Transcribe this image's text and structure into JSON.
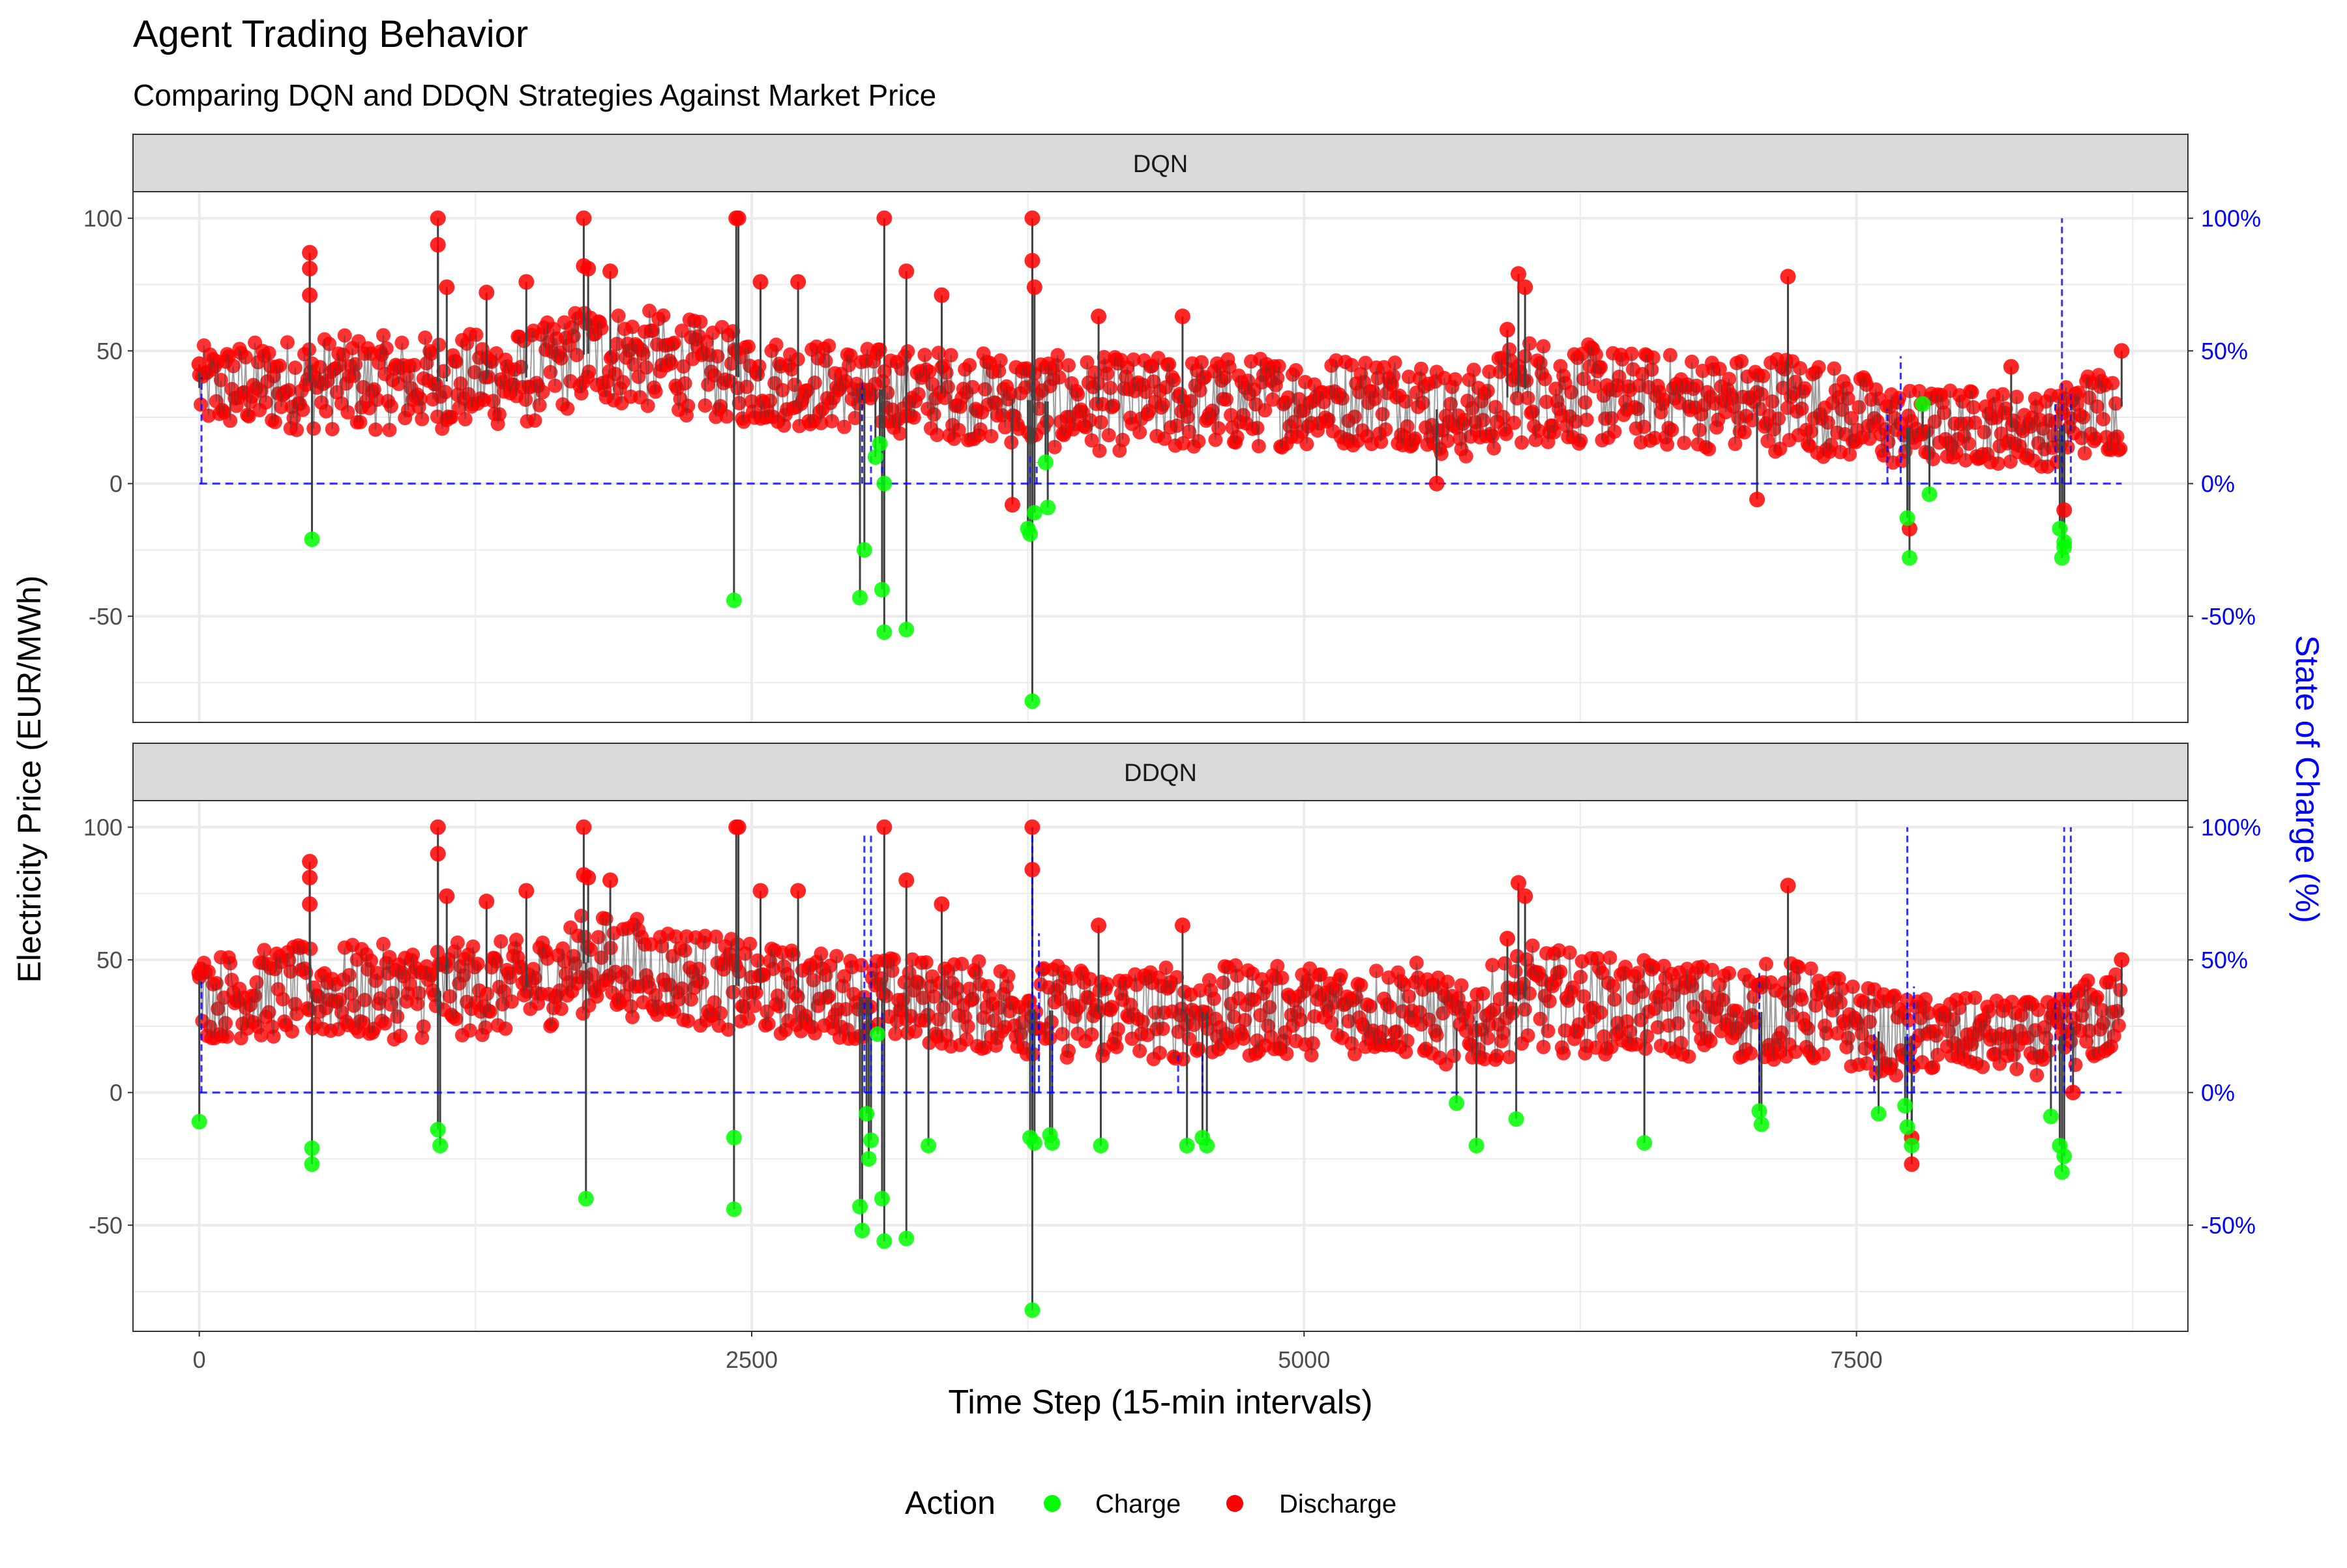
{
  "title": "Agent Trading Behavior",
  "subtitle": "Comparing DQN and DDQN Strategies Against Market Price",
  "colors": {
    "charge": "#00ff00",
    "discharge": "#ff0000",
    "price_line": "#404040",
    "soc_line": "#0000ff",
    "strip_fill": "#d9d9d9",
    "grid": "#ebebeb"
  },
  "legend": {
    "title": "Action",
    "position": "bottom",
    "items": [
      {
        "label": "Charge",
        "color": "#00ff00"
      },
      {
        "label": "Discharge",
        "color": "#ff0000"
      }
    ]
  },
  "chart_data": {
    "type": "scatter",
    "facets": [
      "DQN",
      "DDQN"
    ],
    "xlabel": "Time Step (15-min intervals)",
    "ylabel": "Electricity Price (EUR/MWh)",
    "y2label": "State of Charge (%)",
    "xlim": [
      -300,
      9000
    ],
    "ylim": [
      -90,
      100
    ],
    "xticks": [
      0,
      2500,
      5000,
      7500
    ],
    "xtick_labels": [
      "0",
      "2500",
      "5000",
      "7500"
    ],
    "yticks": [
      -50,
      0,
      50,
      100
    ],
    "ytick_labels": [
      "-50",
      "0",
      "50",
      "100"
    ],
    "y2ticks": [
      "-50%",
      "0%",
      "50%",
      "100%"
    ],
    "grid": true,
    "price_band": [
      {
        "x": 0,
        "low": 20,
        "high": 52
      },
      {
        "x": 500,
        "low": 20,
        "high": 56
      },
      {
        "x": 1000,
        "low": 20,
        "high": 56
      },
      {
        "x": 1500,
        "low": 22,
        "high": 58
      },
      {
        "x": 1750,
        "low": 30,
        "high": 68
      },
      {
        "x": 2000,
        "low": 28,
        "high": 66
      },
      {
        "x": 2250,
        "low": 25,
        "high": 62
      },
      {
        "x": 2500,
        "low": 22,
        "high": 56
      },
      {
        "x": 3000,
        "low": 20,
        "high": 52
      },
      {
        "x": 3500,
        "low": 16,
        "high": 50
      },
      {
        "x": 4000,
        "low": 12,
        "high": 48
      },
      {
        "x": 4500,
        "low": 12,
        "high": 48
      },
      {
        "x": 5000,
        "low": 14,
        "high": 48
      },
      {
        "x": 5500,
        "low": 14,
        "high": 50
      },
      {
        "x": 5700,
        "low": 8,
        "high": 40
      },
      {
        "x": 6000,
        "low": 15,
        "high": 56
      },
      {
        "x": 6500,
        "low": 14,
        "high": 50
      },
      {
        "x": 7000,
        "low": 12,
        "high": 48
      },
      {
        "x": 7200,
        "low": 12,
        "high": 50
      },
      {
        "x": 7500,
        "low": 8,
        "high": 42
      },
      {
        "x": 7700,
        "low": 6,
        "high": 36
      },
      {
        "x": 8000,
        "low": 8,
        "high": 36
      },
      {
        "x": 8400,
        "low": 6,
        "high": 34
      },
      {
        "x": 8500,
        "low": 10,
        "high": 42
      },
      {
        "x": 8700,
        "low": 12,
        "high": 46
      }
    ],
    "series": [
      {
        "facet": "DQN",
        "charge": [
          {
            "x": 510,
            "y": -21
          },
          {
            "x": 2420,
            "y": -44
          },
          {
            "x": 2990,
            "y": -43
          },
          {
            "x": 3010,
            "y": -25
          },
          {
            "x": 3060,
            "y": 10
          },
          {
            "x": 3080,
            "y": 15
          },
          {
            "x": 3090,
            "y": -40
          },
          {
            "x": 3100,
            "y": -56
          },
          {
            "x": 3100,
            "y": 0
          },
          {
            "x": 3200,
            "y": -55
          },
          {
            "x": 3750,
            "y": -17
          },
          {
            "x": 3760,
            "y": -19
          },
          {
            "x": 3770,
            "y": -82
          },
          {
            "x": 3780,
            "y": -11
          },
          {
            "x": 3830,
            "y": 8
          },
          {
            "x": 3840,
            "y": -9
          },
          {
            "x": 7730,
            "y": -13
          },
          {
            "x": 7740,
            "y": -28
          },
          {
            "x": 7800,
            "y": 30
          },
          {
            "x": 7830,
            "y": -4
          },
          {
            "x": 8420,
            "y": -17
          },
          {
            "x": 8430,
            "y": -28
          },
          {
            "x": 8440,
            "y": -22
          },
          {
            "x": 8440,
            "y": -24
          }
        ],
        "discharge": [
          {
            "x": 0,
            "y": 45
          },
          {
            "x": 500,
            "y": 87
          },
          {
            "x": 500,
            "y": 71
          },
          {
            "x": 500,
            "y": 81
          },
          {
            "x": 1080,
            "y": 100
          },
          {
            "x": 1080,
            "y": 90
          },
          {
            "x": 1120,
            "y": 74
          },
          {
            "x": 1300,
            "y": 72
          },
          {
            "x": 1480,
            "y": 76
          },
          {
            "x": 1740,
            "y": 100
          },
          {
            "x": 1740,
            "y": 82
          },
          {
            "x": 1760,
            "y": 81
          },
          {
            "x": 1860,
            "y": 80
          },
          {
            "x": 2430,
            "y": 100
          },
          {
            "x": 2440,
            "y": 100
          },
          {
            "x": 2540,
            "y": 76
          },
          {
            "x": 2710,
            "y": 76
          },
          {
            "x": 3100,
            "y": 100
          },
          {
            "x": 3200,
            "y": 80
          },
          {
            "x": 3360,
            "y": 71
          },
          {
            "x": 3770,
            "y": 100
          },
          {
            "x": 3770,
            "y": 84
          },
          {
            "x": 3780,
            "y": 74
          },
          {
            "x": 4070,
            "y": 63
          },
          {
            "x": 4450,
            "y": 63
          },
          {
            "x": 5920,
            "y": 58
          },
          {
            "x": 5970,
            "y": 79
          },
          {
            "x": 6000,
            "y": 74
          },
          {
            "x": 7190,
            "y": 78
          },
          {
            "x": 7050,
            "y": -6
          },
          {
            "x": 7740,
            "y": -17
          },
          {
            "x": 8440,
            "y": -10
          },
          {
            "x": 8700,
            "y": 50
          },
          {
            "x": 8200,
            "y": 44
          },
          {
            "x": 5600,
            "y": 0
          },
          {
            "x": 3680,
            "y": -8
          }
        ]
      },
      {
        "facet": "DDQN",
        "charge": [
          {
            "x": 0,
            "y": -11
          },
          {
            "x": 510,
            "y": -21
          },
          {
            "x": 510,
            "y": -27
          },
          {
            "x": 1080,
            "y": -14
          },
          {
            "x": 1090,
            "y": -20
          },
          {
            "x": 1750,
            "y": -40
          },
          {
            "x": 2420,
            "y": -17
          },
          {
            "x": 2420,
            "y": -44
          },
          {
            "x": 2990,
            "y": -43
          },
          {
            "x": 3000,
            "y": -52
          },
          {
            "x": 3020,
            "y": -8
          },
          {
            "x": 3030,
            "y": -25
          },
          {
            "x": 3040,
            "y": -18
          },
          {
            "x": 3090,
            "y": -40
          },
          {
            "x": 3100,
            "y": -56
          },
          {
            "x": 3070,
            "y": 22
          },
          {
            "x": 3200,
            "y": -55
          },
          {
            "x": 3300,
            "y": -20
          },
          {
            "x": 3760,
            "y": -17
          },
          {
            "x": 3770,
            "y": -82
          },
          {
            "x": 3780,
            "y": -19
          },
          {
            "x": 3850,
            "y": -16
          },
          {
            "x": 3860,
            "y": -19
          },
          {
            "x": 4080,
            "y": -20
          },
          {
            "x": 4470,
            "y": -20
          },
          {
            "x": 4540,
            "y": -17
          },
          {
            "x": 4560,
            "y": -20
          },
          {
            "x": 5690,
            "y": -4
          },
          {
            "x": 5780,
            "y": -20
          },
          {
            "x": 5960,
            "y": -10
          },
          {
            "x": 6540,
            "y": -19
          },
          {
            "x": 7060,
            "y": -7
          },
          {
            "x": 7070,
            "y": -12
          },
          {
            "x": 7600,
            "y": -8
          },
          {
            "x": 7720,
            "y": -5
          },
          {
            "x": 7730,
            "y": -13
          },
          {
            "x": 7750,
            "y": -20
          },
          {
            "x": 8380,
            "y": -9
          },
          {
            "x": 8420,
            "y": -20
          },
          {
            "x": 8430,
            "y": -30
          },
          {
            "x": 8440,
            "y": -24
          }
        ],
        "discharge": [
          {
            "x": 0,
            "y": 45
          },
          {
            "x": 500,
            "y": 87
          },
          {
            "x": 500,
            "y": 71
          },
          {
            "x": 500,
            "y": 81
          },
          {
            "x": 1080,
            "y": 100
          },
          {
            "x": 1080,
            "y": 90
          },
          {
            "x": 1120,
            "y": 74
          },
          {
            "x": 1300,
            "y": 72
          },
          {
            "x": 1480,
            "y": 76
          },
          {
            "x": 1740,
            "y": 100
          },
          {
            "x": 1740,
            "y": 82
          },
          {
            "x": 1760,
            "y": 81
          },
          {
            "x": 1860,
            "y": 80
          },
          {
            "x": 2430,
            "y": 100
          },
          {
            "x": 2440,
            "y": 100
          },
          {
            "x": 2540,
            "y": 76
          },
          {
            "x": 2710,
            "y": 76
          },
          {
            "x": 3100,
            "y": 100
          },
          {
            "x": 3200,
            "y": 80
          },
          {
            "x": 3360,
            "y": 71
          },
          {
            "x": 3770,
            "y": 100
          },
          {
            "x": 3770,
            "y": 84
          },
          {
            "x": 4070,
            "y": 63
          },
          {
            "x": 4450,
            "y": 63
          },
          {
            "x": 5920,
            "y": 58
          },
          {
            "x": 5970,
            "y": 79
          },
          {
            "x": 6000,
            "y": 74
          },
          {
            "x": 7190,
            "y": 78
          },
          {
            "x": 7750,
            "y": -17
          },
          {
            "x": 7750,
            "y": -27
          },
          {
            "x": 8700,
            "y": 50
          },
          {
            "x": 8480,
            "y": 0
          }
        ]
      }
    ],
    "soc": [
      {
        "facet": "DQN",
        "baseline": 0,
        "spikes": [
          {
            "x": 10,
            "y": 40
          },
          {
            "x": 3000,
            "y": 38
          },
          {
            "x": 3040,
            "y": 22
          },
          {
            "x": 3090,
            "y": 18
          },
          {
            "x": 3760,
            "y": 12
          },
          {
            "x": 3790,
            "y": 8
          },
          {
            "x": 7640,
            "y": 28
          },
          {
            "x": 7700,
            "y": 48
          },
          {
            "x": 8400,
            "y": 30
          },
          {
            "x": 8430,
            "y": 100
          },
          {
            "x": 8470,
            "y": 35
          }
        ]
      },
      {
        "facet": "DDQN",
        "baseline": 0,
        "spikes": [
          {
            "x": 10,
            "y": 42
          },
          {
            "x": 3010,
            "y": 98
          },
          {
            "x": 3040,
            "y": 98
          },
          {
            "x": 3090,
            "y": 30
          },
          {
            "x": 3770,
            "y": 100
          },
          {
            "x": 3800,
            "y": 60
          },
          {
            "x": 3860,
            "y": 25
          },
          {
            "x": 4430,
            "y": 14
          },
          {
            "x": 4540,
            "y": 14
          },
          {
            "x": 7060,
            "y": 45
          },
          {
            "x": 7580,
            "y": 22
          },
          {
            "x": 7730,
            "y": 100
          },
          {
            "x": 7760,
            "y": 40
          },
          {
            "x": 8400,
            "y": 38
          },
          {
            "x": 8440,
            "y": 100
          },
          {
            "x": 8470,
            "y": 100
          }
        ]
      }
    ]
  }
}
